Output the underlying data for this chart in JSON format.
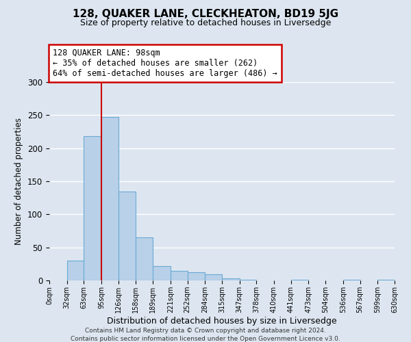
{
  "title": "128, QUAKER LANE, CLECKHEATON, BD19 5JG",
  "subtitle": "Size of property relative to detached houses in Liversedge",
  "xlabel": "Distribution of detached houses by size in Liversedge",
  "ylabel": "Number of detached properties",
  "bar_color": "#b8d0e8",
  "bar_edge_color": "#6aaad4",
  "background_color": "#dde6f0",
  "grid_color": "#ffffff",
  "bin_edges": [
    0,
    32,
    63,
    95,
    126,
    158,
    189,
    221,
    252,
    284,
    315,
    347,
    378,
    410,
    441,
    473,
    504,
    536,
    567,
    599,
    630
  ],
  "bin_labels": [
    "0sqm",
    "32sqm",
    "63sqm",
    "95sqm",
    "126sqm",
    "158sqm",
    "189sqm",
    "221sqm",
    "252sqm",
    "284sqm",
    "315sqm",
    "347sqm",
    "378sqm",
    "410sqm",
    "441sqm",
    "473sqm",
    "504sqm",
    "536sqm",
    "567sqm",
    "599sqm",
    "630sqm"
  ],
  "counts": [
    0,
    30,
    218,
    247,
    135,
    65,
    22,
    14,
    12,
    9,
    3,
    1,
    0,
    0,
    1,
    0,
    0,
    1,
    0,
    1
  ],
  "property_line_x": 95,
  "annotation_title": "128 QUAKER LANE: 98sqm",
  "annotation_line1": "← 35% of detached houses are smaller (262)",
  "annotation_line2": "64% of semi-detached houses are larger (486) →",
  "annotation_box_color": "#ffffff",
  "annotation_box_edge_color": "#cc0000",
  "property_line_color": "#cc0000",
  "ylim": [
    0,
    300
  ],
  "yticks": [
    0,
    50,
    100,
    150,
    200,
    250,
    300
  ],
  "footer1": "Contains HM Land Registry data © Crown copyright and database right 2024.",
  "footer2": "Contains public sector information licensed under the Open Government Licence v3.0."
}
